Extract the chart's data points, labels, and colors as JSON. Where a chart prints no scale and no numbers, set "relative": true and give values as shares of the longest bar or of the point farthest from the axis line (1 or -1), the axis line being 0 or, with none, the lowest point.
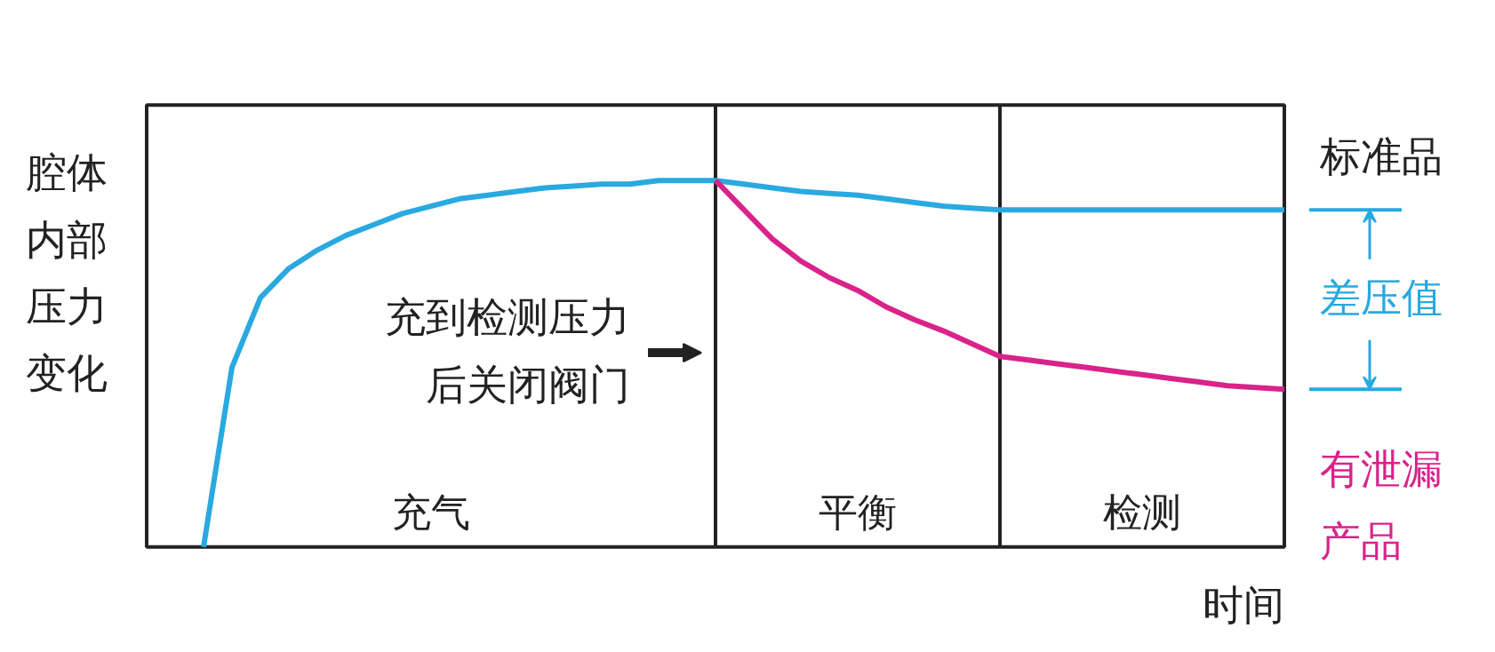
{
  "chart_data": {
    "type": "line",
    "relative": true,
    "xlabel": "时间",
    "ylabel": "腔体内部压力变化",
    "categories": [
      null,
      null,
      null,
      null,
      null,
      null,
      null,
      null,
      null,
      null,
      null,
      null,
      null,
      null,
      null,
      null,
      null,
      null,
      null,
      null,
      null,
      null,
      null,
      null,
      null,
      null,
      null,
      null,
      null,
      null,
      null,
      null,
      null,
      null,
      null,
      null,
      null,
      null,
      null,
      null,
      null
    ],
    "series": [
      {
        "name": "标准品",
        "color": "#29a9e0",
        "values": [
          null,
          null,
          0,
          0.49,
          0.68,
          0.76,
          0.81,
          0.85,
          0.88,
          0.91,
          0.93,
          0.95,
          0.96,
          0.97,
          0.98,
          0.985,
          0.99,
          0.99,
          1.0,
          1.0,
          1.0,
          0.99,
          0.98,
          0.97,
          0.965,
          0.96,
          0.95,
          0.94,
          0.93,
          0.925,
          0.92,
          0.92,
          0.92,
          0.92,
          0.92,
          0.92,
          0.92,
          0.92,
          0.92,
          0.92,
          0.92
        ]
      },
      {
        "name": "有泄漏产品",
        "color": "#d9238a",
        "values": [
          null,
          null,
          null,
          null,
          null,
          null,
          null,
          null,
          null,
          null,
          null,
          null,
          null,
          null,
          null,
          null,
          null,
          null,
          null,
          null,
          1.0,
          0.92,
          0.84,
          0.78,
          0.735,
          0.7,
          0.655,
          0.62,
          0.59,
          0.555,
          0.52,
          0.51,
          0.5,
          0.49,
          0.48,
          0.47,
          0.46,
          0.45,
          0.44,
          0.435,
          0.43
        ]
      }
    ],
    "annotations": [
      "充到检测压力后关闭阀门",
      "差压值",
      "充气",
      "平衡",
      "检测"
    ]
  }
}
